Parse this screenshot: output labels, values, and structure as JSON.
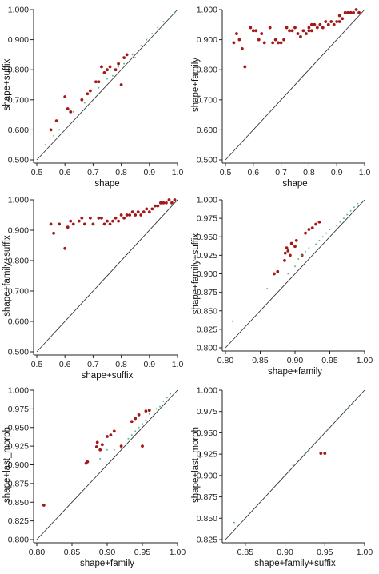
{
  "colors": {
    "red": "#a31818",
    "green": "#33aa77"
  },
  "chart_data": [
    {
      "type": "scatter",
      "xlabel": "shape",
      "ylabel": "shape+suffix",
      "xlim": [
        0.5,
        1.0
      ],
      "ylim": [
        0.5,
        1.0
      ],
      "xticks": [
        "0.5",
        "0.6",
        "0.7",
        "0.8",
        "0.9",
        "1.0"
      ],
      "yticks": [
        "0.500",
        "0.600",
        "0.700",
        "0.800",
        "0.900",
        "1.000"
      ],
      "diagonal": true,
      "series": [
        {
          "color": "red",
          "points": [
            [
              0.55,
              0.6
            ],
            [
              0.57,
              0.63
            ],
            [
              0.6,
              0.71
            ],
            [
              0.61,
              0.67
            ],
            [
              0.62,
              0.66
            ],
            [
              0.66,
              0.7
            ],
            [
              0.68,
              0.72
            ],
            [
              0.69,
              0.73
            ],
            [
              0.71,
              0.76
            ],
            [
              0.72,
              0.76
            ],
            [
              0.73,
              0.81
            ],
            [
              0.74,
              0.79
            ],
            [
              0.75,
              0.8
            ],
            [
              0.76,
              0.81
            ],
            [
              0.78,
              0.8
            ],
            [
              0.79,
              0.82
            ],
            [
              0.8,
              0.75
            ],
            [
              0.81,
              0.84
            ],
            [
              0.82,
              0.85
            ]
          ]
        },
        {
          "color": "green",
          "points": [
            [
              0.53,
              0.55
            ],
            [
              0.56,
              0.58
            ],
            [
              0.58,
              0.6
            ],
            [
              0.63,
              0.66
            ],
            [
              0.67,
              0.69
            ],
            [
              0.72,
              0.74
            ],
            [
              0.75,
              0.77
            ],
            [
              0.77,
              0.78
            ],
            [
              0.79,
              0.81
            ],
            [
              0.81,
              0.82
            ],
            [
              0.84,
              0.85
            ],
            [
              0.85,
              0.84
            ],
            [
              0.87,
              0.88
            ],
            [
              0.89,
              0.9
            ],
            [
              0.91,
              0.92
            ],
            [
              0.93,
              0.94
            ],
            [
              0.95,
              0.96
            ],
            [
              0.97,
              0.97
            ],
            [
              0.99,
              0.99
            ]
          ]
        }
      ]
    },
    {
      "type": "scatter",
      "xlabel": "shape",
      "ylabel": "shape+family",
      "xlim": [
        0.5,
        1.0
      ],
      "ylim": [
        0.5,
        1.0
      ],
      "xticks": [
        "0.5",
        "0.6",
        "0.7",
        "0.8",
        "0.9",
        "1.0"
      ],
      "yticks": [
        "0.500",
        "0.600",
        "0.700",
        "0.800",
        "0.900",
        "1.000"
      ],
      "diagonal": true,
      "series": [
        {
          "color": "red",
          "points": [
            [
              0.53,
              0.89
            ],
            [
              0.54,
              0.92
            ],
            [
              0.55,
              0.9
            ],
            [
              0.56,
              0.87
            ],
            [
              0.57,
              0.81
            ],
            [
              0.59,
              0.94
            ],
            [
              0.6,
              0.93
            ],
            [
              0.61,
              0.93
            ],
            [
              0.62,
              0.9
            ],
            [
              0.63,
              0.92
            ],
            [
              0.64,
              0.89
            ],
            [
              0.66,
              0.94
            ],
            [
              0.67,
              0.89
            ],
            [
              0.68,
              0.9
            ],
            [
              0.69,
              0.89
            ],
            [
              0.7,
              0.89
            ],
            [
              0.71,
              0.9
            ],
            [
              0.72,
              0.94
            ],
            [
              0.73,
              0.93
            ],
            [
              0.74,
              0.93
            ],
            [
              0.75,
              0.94
            ],
            [
              0.76,
              0.92
            ],
            [
              0.77,
              0.91
            ],
            [
              0.78,
              0.93
            ],
            [
              0.79,
              0.92
            ],
            [
              0.8,
              0.94
            ],
            [
              0.8,
              0.93
            ],
            [
              0.81,
              0.95
            ],
            [
              0.81,
              0.93
            ],
            [
              0.82,
              0.95
            ],
            [
              0.83,
              0.94
            ],
            [
              0.84,
              0.95
            ],
            [
              0.85,
              0.94
            ],
            [
              0.86,
              0.96
            ],
            [
              0.87,
              0.95
            ],
            [
              0.88,
              0.96
            ],
            [
              0.89,
              0.95
            ],
            [
              0.9,
              0.96
            ],
            [
              0.91,
              0.98
            ],
            [
              0.91,
              0.96
            ],
            [
              0.92,
              0.97
            ],
            [
              0.93,
              0.99
            ],
            [
              0.94,
              0.99
            ],
            [
              0.95,
              0.99
            ],
            [
              0.96,
              0.99
            ],
            [
              0.97,
              1.0
            ],
            [
              0.98,
              0.99
            ]
          ]
        },
        {
          "color": "green",
          "points": []
        }
      ]
    },
    {
      "type": "scatter",
      "xlabel": "shape+suffix",
      "ylabel": "shape+family+suffix",
      "xlim": [
        0.5,
        1.0
      ],
      "ylim": [
        0.5,
        1.0
      ],
      "xticks": [
        "0.5",
        "0.6",
        "0.7",
        "0.8",
        "0.9",
        "1.0"
      ],
      "yticks": [
        "0.500",
        "0.600",
        "0.700",
        "0.800",
        "0.900",
        "1.000"
      ],
      "diagonal": true,
      "series": [
        {
          "color": "red",
          "points": [
            [
              0.55,
              0.92
            ],
            [
              0.56,
              0.89
            ],
            [
              0.58,
              0.92
            ],
            [
              0.6,
              0.84
            ],
            [
              0.61,
              0.91
            ],
            [
              0.62,
              0.93
            ],
            [
              0.63,
              0.92
            ],
            [
              0.65,
              0.93
            ],
            [
              0.66,
              0.94
            ],
            [
              0.67,
              0.92
            ],
            [
              0.69,
              0.94
            ],
            [
              0.7,
              0.92
            ],
            [
              0.72,
              0.94
            ],
            [
              0.73,
              0.94
            ],
            [
              0.74,
              0.92
            ],
            [
              0.75,
              0.93
            ],
            [
              0.76,
              0.92
            ],
            [
              0.77,
              0.93
            ],
            [
              0.78,
              0.94
            ],
            [
              0.79,
              0.93
            ],
            [
              0.8,
              0.95
            ],
            [
              0.81,
              0.94
            ],
            [
              0.82,
              0.95
            ],
            [
              0.83,
              0.95
            ],
            [
              0.84,
              0.96
            ],
            [
              0.85,
              0.95
            ],
            [
              0.86,
              0.96
            ],
            [
              0.87,
              0.95
            ],
            [
              0.88,
              0.96
            ],
            [
              0.89,
              0.97
            ],
            [
              0.9,
              0.96
            ],
            [
              0.91,
              0.97
            ],
            [
              0.92,
              0.98
            ],
            [
              0.93,
              0.98
            ],
            [
              0.94,
              0.99
            ],
            [
              0.95,
              0.99
            ],
            [
              0.96,
              0.99
            ],
            [
              0.97,
              1.0
            ],
            [
              0.98,
              0.99
            ],
            [
              0.99,
              1.0
            ]
          ]
        },
        {
          "color": "green",
          "points": []
        }
      ]
    },
    {
      "type": "scatter",
      "xlabel": "shape+family",
      "ylabel": "shape+family+suffix",
      "xlim": [
        0.8,
        1.0
      ],
      "ylim": [
        0.8,
        1.0
      ],
      "xticks": [
        "0.80",
        "0.85",
        "0.90",
        "0.95",
        "1.00"
      ],
      "yticks": [
        "0.800",
        "0.825",
        "0.850",
        "0.875",
        "0.900",
        "0.925",
        "0.950",
        "0.975",
        "1.000"
      ],
      "diagonal": true,
      "series": [
        {
          "color": "red",
          "points": [
            [
              0.87,
              0.9
            ],
            [
              0.875,
              0.903
            ],
            [
              0.885,
              0.918
            ],
            [
              0.886,
              0.928
            ],
            [
              0.888,
              0.935
            ],
            [
              0.89,
              0.931
            ],
            [
              0.893,
              0.925
            ],
            [
              0.895,
              0.941
            ],
            [
              0.9,
              0.937
            ],
            [
              0.902,
              0.945
            ],
            [
              0.91,
              0.925
            ],
            [
              0.915,
              0.955
            ],
            [
              0.92,
              0.96
            ],
            [
              0.925,
              0.962
            ],
            [
              0.93,
              0.967
            ],
            [
              0.935,
              0.97
            ]
          ]
        },
        {
          "color": "green",
          "points": [
            [
              0.81,
              0.836
            ],
            [
              0.86,
              0.88
            ],
            [
              0.89,
              0.9
            ],
            [
              0.9,
              0.91
            ],
            [
              0.905,
              0.92
            ],
            [
              0.91,
              0.925
            ],
            [
              0.915,
              0.93
            ],
            [
              0.92,
              0.935
            ],
            [
              0.93,
              0.94
            ],
            [
              0.935,
              0.945
            ],
            [
              0.94,
              0.95
            ],
            [
              0.945,
              0.955
            ],
            [
              0.95,
              0.96
            ],
            [
              0.96,
              0.965
            ],
            [
              0.965,
              0.97
            ],
            [
              0.97,
              0.975
            ],
            [
              0.975,
              0.98
            ],
            [
              0.98,
              0.985
            ],
            [
              0.985,
              0.99
            ],
            [
              0.99,
              0.995
            ]
          ]
        }
      ]
    },
    {
      "type": "scatter",
      "xlabel": "shape+family",
      "ylabel": "shape+last_morph",
      "xlim": [
        0.8,
        1.0
      ],
      "ylim": [
        0.8,
        1.0
      ],
      "xticks": [
        "0.80",
        "0.85",
        "0.90",
        "0.95",
        "1.00"
      ],
      "yticks": [
        "0.800",
        "0.825",
        "0.850",
        "0.875",
        "0.900",
        "0.925",
        "0.950",
        "0.975",
        "1.000"
      ],
      "diagonal": true,
      "series": [
        {
          "color": "red",
          "points": [
            [
              0.81,
              0.846
            ],
            [
              0.87,
              0.902
            ],
            [
              0.872,
              0.904
            ],
            [
              0.885,
              0.924
            ],
            [
              0.886,
              0.93
            ],
            [
              0.89,
              0.92
            ],
            [
              0.893,
              0.927
            ],
            [
              0.9,
              0.938
            ],
            [
              0.905,
              0.94
            ],
            [
              0.91,
              0.945
            ],
            [
              0.92,
              0.925
            ],
            [
              0.935,
              0.958
            ],
            [
              0.94,
              0.962
            ],
            [
              0.945,
              0.967
            ],
            [
              0.95,
              0.925
            ],
            [
              0.955,
              0.972
            ],
            [
              0.96,
              0.973
            ]
          ]
        },
        {
          "color": "green",
          "points": [
            [
              0.89,
              0.908
            ],
            [
              0.9,
              0.92
            ],
            [
              0.91,
              0.92
            ],
            [
              0.92,
              0.922
            ],
            [
              0.93,
              0.935
            ],
            [
              0.935,
              0.94
            ],
            [
              0.94,
              0.945
            ],
            [
              0.945,
              0.95
            ],
            [
              0.95,
              0.955
            ],
            [
              0.955,
              0.96
            ],
            [
              0.96,
              0.968
            ],
            [
              0.97,
              0.975
            ],
            [
              0.975,
              0.978
            ],
            [
              0.98,
              0.985
            ],
            [
              0.985,
              0.99
            ],
            [
              0.99,
              0.995
            ]
          ]
        }
      ]
    },
    {
      "type": "scatter",
      "xlabel": "shape+family+suffix",
      "ylabel": "shape+last_morph",
      "xlim": [
        0.825,
        1.0
      ],
      "ylim": [
        0.825,
        1.0
      ],
      "xticks": [
        "0.85",
        "0.90",
        "0.95",
        "1.00"
      ],
      "yticks": [
        "0.825",
        "0.850",
        "0.875",
        "0.900",
        "0.925",
        "0.950",
        "0.975",
        "1.000"
      ],
      "diagonal": true,
      "series": [
        {
          "color": "red",
          "points": [
            [
              0.945,
              0.926
            ],
            [
              0.95,
              0.926
            ]
          ]
        },
        {
          "color": "green",
          "points": [
            [
              0.836,
              0.845
            ],
            [
              0.9,
              0.9
            ],
            [
              0.905,
              0.905
            ],
            [
              0.91,
              0.912
            ],
            [
              0.915,
              0.918
            ],
            [
              0.92,
              0.92
            ],
            [
              0.925,
              0.925
            ],
            [
              0.93,
              0.93
            ],
            [
              0.935,
              0.935
            ],
            [
              0.94,
              0.94
            ],
            [
              0.945,
              0.945
            ],
            [
              0.95,
              0.95
            ],
            [
              0.955,
              0.955
            ],
            [
              0.96,
              0.96
            ],
            [
              0.965,
              0.965
            ],
            [
              0.97,
              0.97
            ],
            [
              0.975,
              0.975
            ],
            [
              0.98,
              0.98
            ],
            [
              0.985,
              0.985
            ],
            [
              0.99,
              0.99
            ]
          ]
        }
      ]
    }
  ]
}
